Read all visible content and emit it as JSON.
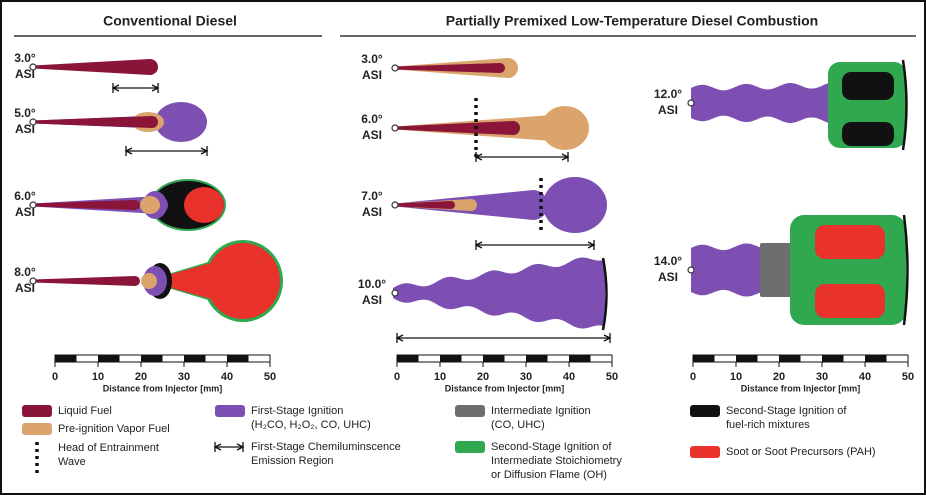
{
  "panels": [
    {
      "title": "Conventional Diesel"
    },
    {
      "title": "Partially Premixed Low-Temperature Diesel Combustion"
    }
  ],
  "snapshots": [
    {
      "angle": "3.0°",
      "ref": "ASI"
    },
    {
      "angle": "5.0°",
      "ref": "ASI"
    },
    {
      "angle": "6.0°",
      "ref": "ASI"
    },
    {
      "angle": "8.0°",
      "ref": "ASI"
    },
    {
      "angle": "3.0°",
      "ref": "ASI"
    },
    {
      "angle": "6.0°",
      "ref": "ASI"
    },
    {
      "angle": "7.0°",
      "ref": "ASI"
    },
    {
      "angle": "10.0°",
      "ref": "ASI"
    },
    {
      "angle": "12.0°",
      "ref": "ASI"
    },
    {
      "angle": "14.0°",
      "ref": "ASI"
    }
  ],
  "axes": [
    {
      "ticks": [
        0,
        10,
        20,
        30,
        40,
        50
      ],
      "label": "Distance from Injector [mm]"
    },
    {
      "ticks": [
        0,
        10,
        20,
        30,
        40,
        50
      ],
      "label": "Distance from Injector [mm]"
    },
    {
      "ticks": [
        0,
        10,
        20,
        30,
        40,
        50
      ],
      "label": "Distance from Injector [mm]"
    }
  ],
  "legend": [
    {
      "lines": [
        "Liquid Fuel"
      ]
    },
    {
      "lines": [
        "Pre-ignition Vapor Fuel"
      ]
    },
    {
      "lines": [
        "Head of Entrainment",
        "Wave"
      ]
    },
    {
      "lines": [
        "First-Stage Ignition",
        "(H₂CO, H₂O₂, CO, UHC)"
      ]
    },
    {
      "lines": [
        "First-Stage Chemiluminscence",
        "Emission Region"
      ]
    },
    {
      "lines": [
        "Intermediate Ignition",
        "(CO, UHC)"
      ]
    },
    {
      "lines": [
        "Second-Stage Ignition of",
        "Intermediate Stoichiometry",
        "or Diffusion Flame (OH)"
      ]
    },
    {
      "lines": [
        "Second-Stage Ignition of",
        "fuel-rich mixtures"
      ]
    },
    {
      "lines": [
        "Soot or Soot Precursors (PAH)"
      ]
    }
  ]
}
